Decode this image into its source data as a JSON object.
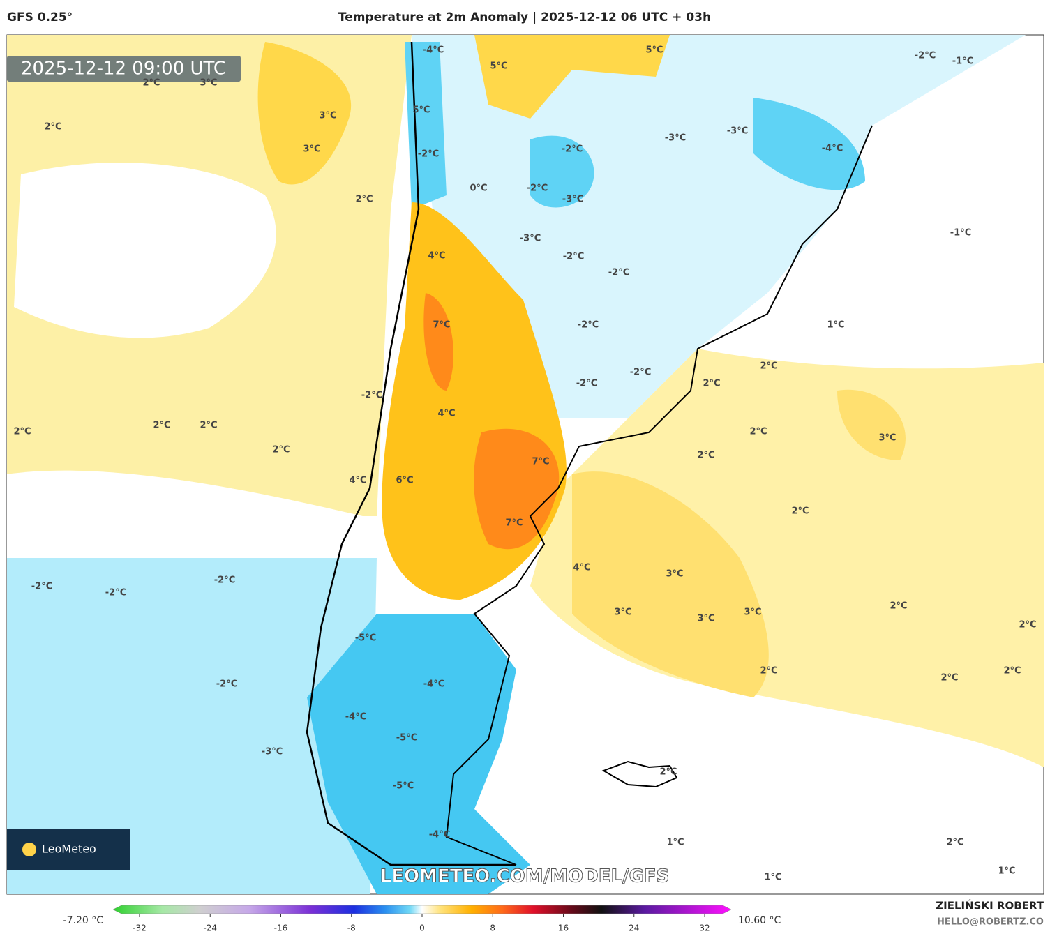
{
  "header": {
    "model": "GFS 0.25°",
    "title": "Temperature at 2m Anomaly | 2025-12-12 06 UTC + 03h"
  },
  "map": {
    "valid_time": "2025-12-12 09:00 UTC",
    "watermark": "LEOMETEO.COM/MODEL/GFS",
    "logo": "LeoMeteo",
    "labels": [
      "-4°C",
      "5°C",
      "-2°C",
      "-1°C",
      "5°C",
      "2°C",
      "3°C",
      "5°C",
      "3°C",
      "2°C",
      "-3°C",
      "-3°C",
      "3°C",
      "-2°C",
      "-4°C",
      "-2°C",
      "0°C",
      "-2°C",
      "-3°C",
      "2°C",
      "-1°C",
      "-3°C",
      "4°C",
      "-2°C",
      "-2°C",
      "1°C",
      "7°C",
      "-2°C",
      "2°C",
      "-2°C",
      "2°C",
      "-2°C",
      "-2°C",
      "4°C",
      "2°C",
      "2°C",
      "2°C",
      "2°C",
      "3°C",
      "2°C",
      "2°C",
      "7°C",
      "4°C",
      "6°C",
      "2°C",
      "7°C",
      "4°C",
      "3°C",
      "-2°C",
      "-2°C",
      "-2°C",
      "2°C",
      "3°C",
      "3°C",
      "3°C",
      "2°C",
      "-5°C",
      "2°C",
      "2°C",
      "2°C",
      "-4°C",
      "-2°C",
      "-4°C",
      "-5°C",
      "-3°C",
      "2°C",
      "-5°C",
      "-4°C",
      "1°C",
      "2°C",
      "1°C",
      "1°C"
    ]
  },
  "colorbar": {
    "min_label": "-7.20 °C",
    "max_label": "10.60 °C",
    "lim": [
      -35,
      35
    ],
    "ticks": [
      -32,
      -24,
      -16,
      -8,
      0,
      8,
      16,
      24,
      32
    ]
  },
  "credits": {
    "author": "ZIELIŃSKI ROBERT",
    "contact": "HELLO@ROBERTZ.CO"
  }
}
